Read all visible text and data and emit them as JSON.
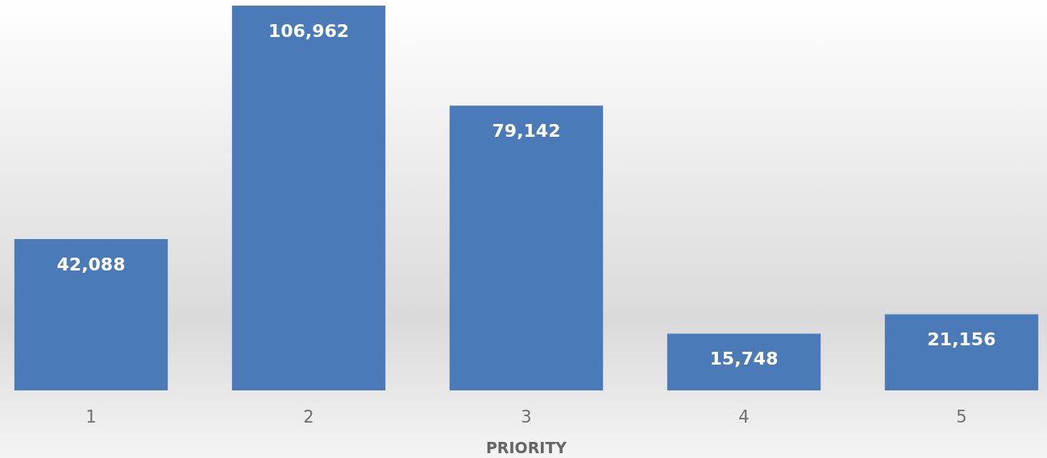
{
  "chart_data": {
    "type": "bar",
    "xlabel": "PRIORITY",
    "categories": [
      "1",
      "2",
      "3",
      "4",
      "5"
    ],
    "values": [
      42088,
      106962,
      79142,
      15748,
      21156
    ],
    "color": "#4a7ab8",
    "value_labels": [
      "42,088",
      "106,962",
      "79,142",
      "15,748",
      "21,156"
    ],
    "grid": false,
    "legend": false
  }
}
